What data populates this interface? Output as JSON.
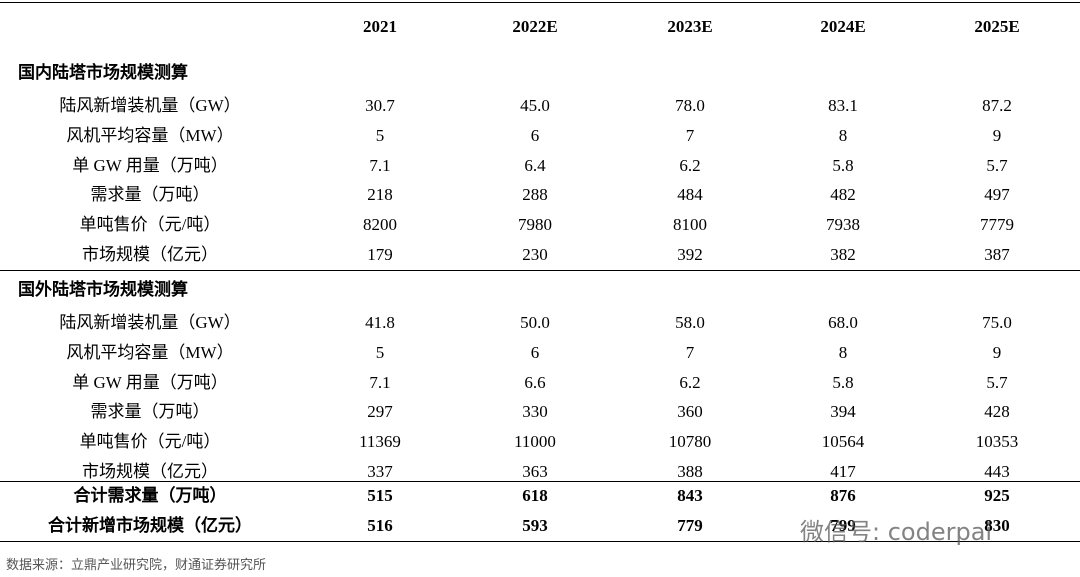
{
  "header": {
    "columns": [
      "2021",
      "2022E",
      "2023E",
      "2024E",
      "2025E"
    ]
  },
  "sections": [
    {
      "title": "国内陆塔市场规模测算",
      "rows": [
        {
          "label": "陆风新增装机量（GW）",
          "values": [
            "30.7",
            "45.0",
            "78.0",
            "83.1",
            "87.2"
          ]
        },
        {
          "label": "风机平均容量（MW）",
          "values": [
            "5",
            "6",
            "7",
            "8",
            "9"
          ]
        },
        {
          "label": "单 GW 用量（万吨）",
          "values": [
            "7.1",
            "6.4",
            "6.2",
            "5.8",
            "5.7"
          ]
        },
        {
          "label": "需求量（万吨）",
          "values": [
            "218",
            "288",
            "484",
            "482",
            "497"
          ]
        },
        {
          "label": "单吨售价（元/吨）",
          "values": [
            "8200",
            "7980",
            "8100",
            "7938",
            "7779"
          ]
        },
        {
          "label": "市场规模（亿元）",
          "values": [
            "179",
            "230",
            "392",
            "382",
            "387"
          ]
        }
      ]
    },
    {
      "title": "国外陆塔市场规模测算",
      "rows": [
        {
          "label": "陆风新增装机量（GW）",
          "values": [
            "41.8",
            "50.0",
            "58.0",
            "68.0",
            "75.0"
          ]
        },
        {
          "label": "风机平均容量（MW）",
          "values": [
            "5",
            "6",
            "7",
            "8",
            "9"
          ]
        },
        {
          "label": "单 GW 用量（万吨）",
          "values": [
            "7.1",
            "6.6",
            "6.2",
            "5.8",
            "5.7"
          ]
        },
        {
          "label": "需求量（万吨）",
          "values": [
            "297",
            "330",
            "360",
            "394",
            "428"
          ]
        },
        {
          "label": "单吨售价（元/吨）",
          "values": [
            "11369",
            "11000",
            "10780",
            "10564",
            "10353"
          ]
        },
        {
          "label": "市场规模（亿元）",
          "values": [
            "337",
            "363",
            "388",
            "417",
            "443"
          ]
        }
      ]
    }
  ],
  "totals": [
    {
      "label": "合计需求量（万吨）",
      "values": [
        "515",
        "618",
        "843",
        "876",
        "925"
      ]
    },
    {
      "label": "合计新增市场规模（亿元）",
      "values": [
        "516",
        "593",
        "779",
        "799",
        "830"
      ]
    }
  ],
  "source": "数据来源：立鼎产业研究院，财通证券研究所",
  "watermark": "微信号: coderpai"
}
